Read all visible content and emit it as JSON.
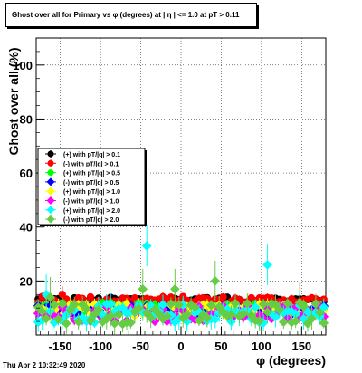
{
  "title": "Ghost over all for Primary vs φ (degrees) at | η | <= 1.0 at pT > 0.11",
  "timestamp": "Thu Apr  2 10:32:49 2020",
  "colors": {
    "pos01": "#000000",
    "neg01": "#ff0000",
    "pos05": "#00ff00",
    "neg05": "#0000ff",
    "pos10": "#ffff00",
    "neg10": "#ff00ff",
    "pos20": "#00ffff",
    "neg20": "#66cc44"
  },
  "chart_data": {
    "type": "scatter",
    "xlabel": "φ (degrees)",
    "ylabel": "Ghost over all (%)",
    "xlim": [
      -180,
      180
    ],
    "ylim": [
      0,
      110
    ],
    "x_ticks": [
      "-150",
      "-100",
      "-50",
      "0",
      "50",
      "100",
      "150"
    ],
    "y_ticks": [
      "20",
      "40",
      "60",
      "80",
      "100"
    ],
    "grid": true,
    "legend_position": "left",
    "series": [
      {
        "name": "(+) with pT/|q| > 0.1",
        "color_key": "pos01",
        "marker": "circle",
        "baseline": 13,
        "spread": 1.0,
        "err": 1.0,
        "spikes": []
      },
      {
        "name": "(-) with pT/|q| > 0.1",
        "color_key": "neg01",
        "marker": "circle",
        "baseline": 13,
        "spread": 1.3,
        "err": 1.2,
        "spikes": [
          [
            -150,
            15
          ]
        ]
      },
      {
        "name": "(+) with pT/|q| > 0.5",
        "color_key": "pos05",
        "marker": "circle",
        "baseline": 10,
        "spread": 2.0,
        "err": 1.5,
        "spikes": []
      },
      {
        "name": "(-) with pT/|q| > 0.5",
        "color_key": "neg05",
        "marker": "diamond",
        "baseline": 9,
        "spread": 2.0,
        "err": 1.5,
        "spikes": []
      },
      {
        "name": "(+) with pT/|q| > 1.0",
        "color_key": "pos10",
        "marker": "diamond",
        "baseline": 9,
        "spread": 2.5,
        "err": 2.0,
        "spikes": []
      },
      {
        "name": "(-) with pT/|q| > 1.0",
        "color_key": "neg10",
        "marker": "diamond",
        "baseline": 8,
        "spread": 3.0,
        "err": 2.0,
        "spikes": []
      },
      {
        "name": "(+) with pT/|q| > 2.0",
        "color_key": "pos20",
        "marker": "diamond",
        "baseline": 8,
        "spread": 3.5,
        "err": 3.0,
        "spikes": [
          [
            -45,
            33
          ],
          [
            105,
            26
          ],
          [
            -170,
            15
          ]
        ]
      },
      {
        "name": "(-) with pT/|q| > 2.0",
        "color_key": "neg20",
        "marker": "diamond",
        "baseline": 8,
        "spread": 4.0,
        "err": 3.0,
        "spikes": [
          [
            40,
            20
          ],
          [
            -50,
            17
          ],
          [
            -10,
            17
          ],
          [
            -165,
            14
          ],
          [
            145,
            12
          ]
        ]
      }
    ]
  }
}
